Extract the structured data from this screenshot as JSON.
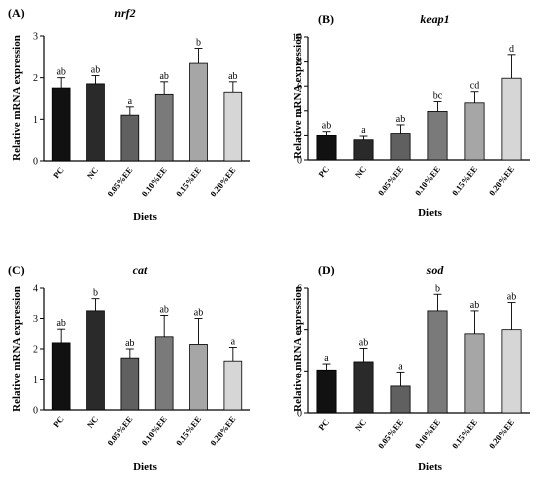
{
  "chart_data": [
    {
      "type": "bar",
      "panel": "(A)",
      "title": "nrf2",
      "xlabel": "Diets",
      "ylabel": "Relative mRNA expression",
      "categories": [
        "PC",
        "NC",
        "0.05%EE",
        "0.10%EE",
        "0.15%EE",
        "0.20%EE"
      ],
      "values": [
        1.75,
        1.85,
        1.1,
        1.6,
        2.35,
        1.65
      ],
      "errors": [
        0.25,
        0.2,
        0.2,
        0.3,
        0.35,
        0.25
      ],
      "letters": [
        "ab",
        "ab",
        "a",
        "ab",
        "b",
        "ab"
      ],
      "ylim": [
        0,
        3
      ],
      "yticks": [
        0,
        1,
        2,
        3
      ],
      "colors": [
        "#111111",
        "#2a2a2a",
        "#606060",
        "#7a7a7a",
        "#a6a6a6",
        "#d6d6d6"
      ]
    },
    {
      "type": "bar",
      "panel": "(B)",
      "title": "keap1",
      "xlabel": "Diets",
      "ylabel": "Relative mRNA expression",
      "categories": [
        "PC",
        "NC",
        "0.05%EE",
        "0.10%EE",
        "0.15%EE",
        "0.20%EE"
      ],
      "values": [
        2.0,
        1.65,
        2.15,
        3.95,
        4.65,
        6.65
      ],
      "errors": [
        0.3,
        0.3,
        0.7,
        0.8,
        0.9,
        1.9
      ],
      "letters": [
        "ab",
        "a",
        "ab",
        "bc",
        "cd",
        "d"
      ],
      "ylim": [
        0,
        10
      ],
      "yticks": [
        0,
        2,
        4,
        6,
        8,
        10
      ],
      "colors": [
        "#111111",
        "#2a2a2a",
        "#606060",
        "#7a7a7a",
        "#a6a6a6",
        "#d6d6d6"
      ]
    },
    {
      "type": "bar",
      "panel": "(C)",
      "title": "cat",
      "xlabel": "Diets",
      "ylabel": "Relative mRNA expression",
      "categories": [
        "PC",
        "NC",
        "0.05%EE",
        "0.10%EE",
        "0.15%EE",
        "0.20%EE"
      ],
      "values": [
        2.2,
        3.25,
        1.7,
        2.4,
        2.15,
        1.6
      ],
      "errors": [
        0.45,
        0.4,
        0.3,
        0.7,
        0.85,
        0.45
      ],
      "letters": [
        "ab",
        "b",
        "ab",
        "ab",
        "ab",
        "a"
      ],
      "ylim": [
        0,
        4
      ],
      "yticks": [
        0,
        1,
        2,
        3,
        4
      ],
      "colors": [
        "#111111",
        "#2a2a2a",
        "#606060",
        "#7a7a7a",
        "#a6a6a6",
        "#d6d6d6"
      ]
    },
    {
      "type": "bar",
      "panel": "(D)",
      "title": "sod",
      "xlabel": "Diets",
      "ylabel": "Relative mRNA expression",
      "categories": [
        "PC",
        "NC",
        "0.05%EE",
        "0.10%EE",
        "0.15%EE",
        "0.20%EE"
      ],
      "values": [
        2.05,
        2.45,
        1.3,
        4.9,
        3.8,
        4.0
      ],
      "errors": [
        0.3,
        0.65,
        0.65,
        0.8,
        1.1,
        1.3
      ],
      "letters": [
        "a",
        "ab",
        "a",
        "b",
        "ab",
        "ab"
      ],
      "ylim": [
        0,
        6
      ],
      "yticks": [
        0,
        2,
        4,
        6
      ],
      "colors": [
        "#111111",
        "#2a2a2a",
        "#606060",
        "#7a7a7a",
        "#a6a6a6",
        "#d6d6d6"
      ]
    }
  ]
}
